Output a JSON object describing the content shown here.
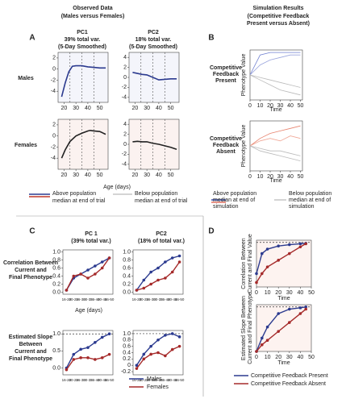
{
  "observed": {
    "title": "Observed Data",
    "subtitle": "(Males versus Females)",
    "label": "A",
    "columns": [
      {
        "name": "PC1",
        "variance": "39% total var.",
        "note": "(5-Day Smoothed)"
      },
      {
        "name": "PC2",
        "variance": "18% total var.",
        "note": "(5-Day Smoothed)"
      }
    ],
    "rows": [
      "Males",
      "Females"
    ],
    "xlabel": "Age (days)",
    "plots": [
      {
        "xlim": [
          15,
          57
        ],
        "ylim": [
          -6,
          3
        ],
        "xticks": [
          20,
          30,
          40,
          50
        ],
        "yticks": [
          2,
          0,
          -2,
          -4
        ],
        "dashed_x": [
          25,
          35,
          45
        ],
        "series": [
          {
            "color": "#2b3a8f",
            "x": [
              18,
              21,
              24,
              27,
              30,
              35,
              40,
              45,
              50,
              55
            ],
            "values": [
              -5,
              -2.5,
              -0.5,
              0.5,
              0.6,
              0.6,
              0.4,
              0.3,
              0.2,
              0.2
            ]
          }
        ]
      },
      {
        "xlim": [
          15,
          57
        ],
        "ylim": [
          -5,
          5
        ],
        "xticks": [
          20,
          30,
          40,
          50
        ],
        "yticks": [
          4,
          2,
          0,
          -2,
          -4
        ],
        "dashed_x": [
          25,
          35,
          45
        ],
        "series": [
          {
            "color": "#2b3a8f",
            "x": [
              18,
              22,
              26,
              30,
              35,
              40,
              45,
              50,
              55
            ],
            "values": [
              1,
              0.8,
              0.6,
              0.5,
              0,
              -0.5,
              -0.4,
              -0.3,
              -0.3
            ]
          }
        ]
      },
      {
        "xlim": [
          15,
          57
        ],
        "ylim": [
          -6,
          3
        ],
        "xticks": [
          20,
          30,
          40,
          50
        ],
        "yticks": [
          2,
          0,
          -2,
          -4
        ],
        "dashed_x": [
          25,
          35,
          45
        ],
        "series": [
          {
            "color": "#222222",
            "x": [
              18,
              21,
              25,
              30,
              35,
              40,
              42,
              45,
              50,
              55
            ],
            "values": [
              -4,
              -2.5,
              -1,
              0,
              0.5,
              0.9,
              1,
              0.9,
              0.8,
              0.3
            ]
          }
        ]
      },
      {
        "xlim": [
          15,
          57
        ],
        "ylim": [
          -5,
          5
        ],
        "xticks": [
          20,
          30,
          40,
          50
        ],
        "yticks": [
          4,
          2,
          0,
          -2,
          -4
        ],
        "dashed_x": [
          25,
          35,
          45
        ],
        "series": [
          {
            "color": "#222222",
            "x": [
              18,
              22,
              26,
              30,
              35,
              40,
              45,
              50,
              55
            ],
            "values": [
              0.5,
              0.6,
              0.5,
              0.5,
              0.2,
              0,
              -0.3,
              -0.6,
              -1
            ]
          }
        ]
      }
    ]
  },
  "simulation": {
    "title": "Simulation Results",
    "subtitle": [
      "(Competitive Feedback",
      "Present versus Absent)"
    ],
    "label": "B",
    "rows": [
      [
        "Competitive",
        "Feedback",
        "Present"
      ],
      [
        "Competitive",
        "Feedback",
        "Absent"
      ]
    ],
    "xlabel": "Time",
    "ylabel": "Phenotype Value",
    "plots": [
      {
        "xlim": [
          0,
          52
        ],
        "ylim": [
          -10,
          10
        ],
        "xticks": [
          0,
          10,
          20,
          30,
          40,
          50
        ],
        "series": [
          {
            "color": "#6f7fd0",
            "x": [
              0,
              10,
              20,
              30,
              40,
              50
            ],
            "values": [
              0,
              8,
              9,
              9,
              9,
              9
            ]
          },
          {
            "color": "#9aa5dd",
            "x": [
              0,
              10,
              20,
              30,
              40,
              50
            ],
            "values": [
              0,
              4,
              6,
              7,
              8,
              8
            ]
          },
          {
            "color": "#bbbbbb",
            "x": [
              0,
              10,
              20,
              30,
              40,
              50
            ],
            "values": [
              0,
              -2,
              -4,
              -6,
              -7,
              -8
            ]
          },
          {
            "color": "#bbbbbb",
            "x": [
              0,
              10,
              20,
              30,
              40,
              50
            ],
            "values": [
              0,
              -1,
              -2,
              -3,
              -4,
              -5
            ]
          }
        ]
      },
      {
        "xlim": [
          0,
          52
        ],
        "ylim": [
          -10,
          10
        ],
        "xticks": [
          0,
          10,
          20,
          30,
          40,
          50
        ],
        "series": [
          {
            "color": "#e8826d",
            "x": [
              0,
              10,
              20,
              30,
              40,
              50
            ],
            "values": [
              0,
              3,
              5,
              6,
              7,
              8
            ]
          },
          {
            "color": "#f0a796",
            "x": [
              0,
              10,
              20,
              30,
              40,
              50
            ],
            "values": [
              0,
              2,
              3,
              2,
              4,
              3
            ]
          },
          {
            "color": "#bbbbbb",
            "x": [
              0,
              10,
              20,
              30,
              40,
              50
            ],
            "values": [
              0,
              -2,
              -3,
              -4,
              -5,
              -6
            ]
          },
          {
            "color": "#bbbbbb",
            "x": [
              0,
              10,
              20,
              30,
              40,
              50
            ],
            "values": [
              0,
              -1,
              -2,
              -2,
              -3,
              -4
            ]
          }
        ]
      }
    ]
  },
  "legend_top": {
    "observed": [
      [
        "Above population",
        "median at end of trial"
      ],
      [
        "Below population",
        "median at end of trial"
      ]
    ],
    "simulation": [
      [
        "Above population",
        "median at end of",
        "simulation"
      ],
      [
        "Below population",
        "median at end of",
        "simulation"
      ]
    ]
  },
  "correlation": {
    "label": "C",
    "columns": [
      [
        "PC 1",
        "(39% total var.)"
      ],
      [
        "PC2",
        "(18% of total var.)"
      ]
    ],
    "rows": [
      [
        "Correlation Between",
        "Current and",
        "Final Phenotype"
      ],
      [
        "Estimated Slope",
        "Between",
        "Current and",
        "Final Phenotype"
      ]
    ],
    "xlabel": "Age (days)",
    "plots": [
      {
        "categories": [
          "16-20",
          "20-25",
          "26-30",
          "30-35",
          "36-40",
          "40-45",
          "46-50"
        ],
        "ylim": [
          -0.05,
          1.05
        ],
        "yticks": [
          {
            "value": 0,
            "label": "0.0"
          },
          0.2,
          0.4,
          0.6,
          0.8,
          {
            "value": 1,
            "label": "1.0"
          }
        ],
        "series": [
          {
            "color": "#2b3a8f",
            "values": [
              0.05,
              0.35,
              0.45,
              0.55,
              0.65,
              0.75,
              0.85
            ]
          },
          {
            "color": "#a52a2a",
            "values": [
              0.05,
              0.4,
              0.45,
              0.35,
              0.45,
              0.6,
              0.85
            ]
          }
        ]
      },
      {
        "categories": [
          "16-20",
          "20-25",
          "26-30",
          "30-35",
          "36-40",
          "40-45",
          "46-50"
        ],
        "ylim": [
          -0.05,
          1.05
        ],
        "yticks": [
          {
            "value": 0,
            "label": "0.0"
          },
          0.2,
          0.4,
          0.6,
          0.8,
          {
            "value": 1,
            "label": "1.0"
          }
        ],
        "series": [
          {
            "color": "#2b3a8f",
            "values": [
              0.05,
              0.3,
              0.5,
              0.6,
              0.75,
              0.85,
              0.9
            ]
          },
          {
            "color": "#a52a2a",
            "values": [
              0.05,
              0.1,
              0.2,
              0.3,
              0.35,
              0.5,
              0.75
            ]
          }
        ]
      },
      {
        "categories": [
          "16-20",
          "20-25",
          "26-30",
          "30-35",
          "36-40",
          "40-45",
          "46-50"
        ],
        "ylim": [
          -0.2,
          1.1
        ],
        "yticks": [
          {
            "value": 0,
            "label": "0.0"
          },
          {
            "value": 0.5,
            "label": "0.5"
          },
          {
            "value": 1,
            "label": "1.0"
          }
        ],
        "dashed_y": [
          1
        ],
        "series": [
          {
            "color": "#2b3a8f",
            "values": [
              0,
              0.4,
              0.55,
              0.6,
              0.75,
              0.9,
              1
            ]
          },
          {
            "color": "#a52a2a",
            "values": [
              -0.05,
              0.25,
              0.3,
              0.3,
              0.25,
              0.3,
              0.4
            ]
          }
        ]
      },
      {
        "categories": [
          "16-20",
          "20-25",
          "26-30",
          "30-35",
          "36-40",
          "40-45",
          "46-50"
        ],
        "ylim": [
          -0.3,
          1.1
        ],
        "yticks": [
          -0.2,
          0,
          0.2,
          0.4,
          0.6,
          0.8,
          {
            "value": 1,
            "label": "1.0"
          }
        ],
        "dashed_y": [
          1
        ],
        "series": [
          {
            "color": "#2b3a8f",
            "values": [
              0,
              0.35,
              0.6,
              0.8,
              0.95,
              1,
              0.9
            ]
          },
          {
            "color": "#a52a2a",
            "values": [
              -0.1,
              0.2,
              0.35,
              0.4,
              0.3,
              0.5,
              0.6
            ]
          }
        ]
      }
    ],
    "legend": [
      "Males",
      "Females"
    ]
  },
  "simulation_stats": {
    "label": "D",
    "xlabel": "Time",
    "ylabels": [
      [
        "Correlation Between",
        "Current and Final Value"
      ],
      [
        "Estimated Slope Between",
        "Current and Final Phenotype"
      ]
    ],
    "plots": [
      {
        "xlim": [
          0,
          50
        ],
        "ylim": [
          0,
          1.05
        ],
        "xticks": [
          0,
          10,
          20,
          30,
          40,
          50
        ],
        "dashed_y": [
          1
        ],
        "series": [
          {
            "color": "#2b3a8f",
            "x": [
              0,
              5,
              10,
              20,
              30,
              40,
              45
            ],
            "values": [
              0.3,
              0.75,
              0.85,
              0.92,
              0.95,
              0.97,
              0.98
            ]
          },
          {
            "color": "#a52a2a",
            "x": [
              0,
              5,
              10,
              20,
              30,
              40,
              45
            ],
            "values": [
              0.1,
              0.3,
              0.45,
              0.6,
              0.75,
              0.9,
              0.97
            ]
          }
        ]
      },
      {
        "xlim": [
          0,
          50
        ],
        "ylim": [
          0,
          1.05
        ],
        "xticks": [
          0,
          10,
          20,
          30,
          40,
          50
        ],
        "dashed_y": [
          1
        ],
        "series": [
          {
            "color": "#2b3a8f",
            "x": [
              0,
              5,
              10,
              20,
              30,
              40,
              45
            ],
            "values": [
              0,
              0.3,
              0.55,
              0.85,
              0.95,
              0.98,
              1
            ]
          },
          {
            "color": "#a52a2a",
            "x": [
              0,
              5,
              10,
              20,
              30,
              40,
              45
            ],
            "values": [
              0,
              0.15,
              0.25,
              0.45,
              0.65,
              0.85,
              0.95
            ]
          }
        ]
      }
    ],
    "legend": [
      "Competitive Feedback Present",
      "Competitive Feedback Absent"
    ]
  }
}
